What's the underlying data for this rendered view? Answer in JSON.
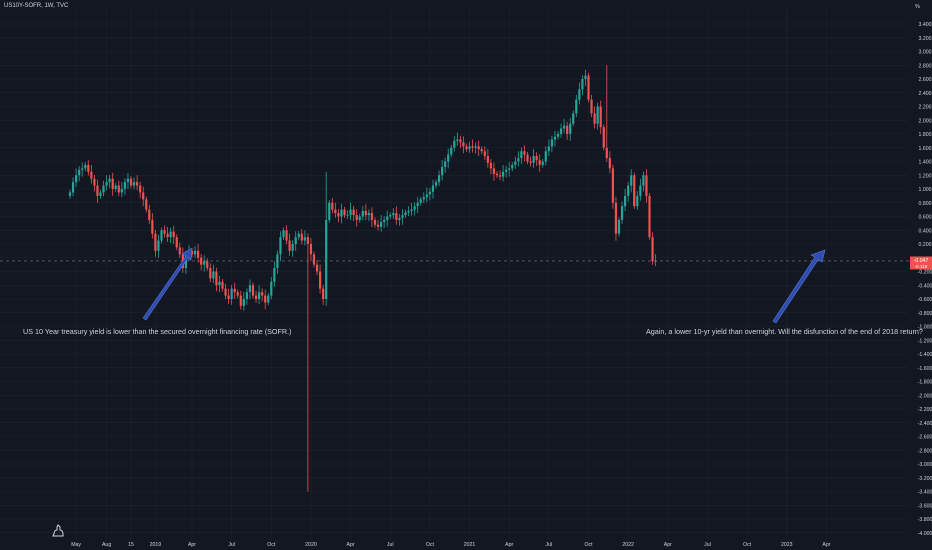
{
  "header": {
    "symbol": "US10Y-SOFR, 1W, TVC"
  },
  "annotations": [
    "US 10 Year treasury yield is lower than the secured overnight financing rate (SOFR.)",
    "Again, a lower 10-yr yield than overnight.  Will the disfunction of the end of 2018 return?"
  ],
  "price_axis": {
    "unit_label": "%"
  },
  "colors": {
    "background": "#131722",
    "up": "#26a69a",
    "down": "#ef5350",
    "grid": "#1f2433",
    "text": "#d1d4dc",
    "arrow": "#2f4db3",
    "zero_line": "#787b86"
  },
  "chart_data": {
    "type": "candlestick",
    "ylim": [
      -4.0,
      3.6
    ],
    "yticks": [
      3.4,
      3.2,
      3.0,
      2.8,
      2.6,
      2.4,
      2.2,
      2.0,
      1.8,
      1.6,
      1.4,
      1.2,
      1.0,
      0.8,
      0.6,
      0.4,
      0.2,
      0.0,
      -0.2,
      -0.4,
      -0.6,
      -0.8,
      -1.0,
      -1.2,
      -1.4,
      -1.6,
      -1.8,
      -2.0,
      -2.2,
      -2.4,
      -2.6,
      -2.8,
      -3.0,
      -3.2,
      -3.4,
      -3.6,
      -3.8,
      -4.0
    ],
    "ytick_labels": [
      "3.400",
      "3.200",
      "3.000",
      "2.800",
      "2.600",
      "2.400",
      "2.200",
      "2.000",
      "1.800",
      "1.600",
      "1.400",
      "1.200",
      "1.000",
      "0.800",
      "0.600",
      "0.400",
      "0.200",
      "",
      "-0.200",
      "-0.400",
      "-0.600",
      "-0.800",
      "-1.000",
      "-1.200",
      "-1.400",
      "-1.600",
      "-1.800",
      "-2.000",
      "-2.200",
      "-2.400",
      "-2.600",
      "-2.800",
      "-3.000",
      "-3.200",
      "-3.400",
      "-3.600",
      "-3.800",
      "-4.000"
    ],
    "xticks": [
      "May",
      "Aug",
      "15",
      "2019",
      "Apr",
      "Jul",
      "Oct",
      "2020",
      "Apr",
      "Jul",
      "Oct",
      "2021",
      "Apr",
      "Jul",
      "Oct",
      "2022",
      "Apr",
      "Jul",
      "Oct",
      "2023",
      "Apr"
    ],
    "xtick_index": [
      2,
      12,
      20,
      28,
      40,
      53,
      66,
      79,
      92,
      105,
      118,
      131,
      144,
      157,
      170,
      183,
      196,
      209,
      222,
      235,
      248
    ],
    "last_value": -0.047,
    "last_value_label": "-0.047",
    "last_value_sublabel": "-0.119",
    "closes": [
      0.95,
      1.1,
      1.2,
      1.28,
      1.3,
      1.35,
      1.25,
      1.15,
      1.05,
      0.9,
      0.95,
      1.05,
      1.1,
      1.15,
      1.0,
      1.05,
      0.95,
      1.0,
      1.1,
      1.15,
      1.05,
      1.1,
      1.05,
      0.95,
      0.85,
      0.7,
      0.55,
      0.35,
      0.1,
      0.25,
      0.4,
      0.35,
      0.3,
      0.38,
      0.3,
      0.15,
      0.05,
      -0.15,
      0.05,
      0.1,
      0.05,
      0.1,
      0.0,
      -0.1,
      -0.05,
      -0.15,
      -0.3,
      -0.2,
      -0.4,
      -0.35,
      -0.45,
      -0.55,
      -0.6,
      -0.45,
      -0.5,
      -0.55,
      -0.7,
      -0.6,
      -0.5,
      -0.4,
      -0.55,
      -0.6,
      -0.5,
      -0.55,
      -0.65,
      -0.55,
      -0.35,
      -0.15,
      0.05,
      0.3,
      0.4,
      0.25,
      0.1,
      0.2,
      0.3,
      0.35,
      0.25,
      0.3,
      0.2,
      0.05,
      -0.1,
      -0.2,
      -0.45,
      -0.6,
      0.55,
      0.8,
      0.7,
      0.65,
      0.6,
      0.7,
      0.62,
      0.62,
      0.7,
      0.62,
      0.55,
      0.6,
      0.68,
      0.62,
      0.65,
      0.55,
      0.48,
      0.45,
      0.52,
      0.55,
      0.6,
      0.62,
      0.65,
      0.55,
      0.58,
      0.62,
      0.66,
      0.68,
      0.7,
      0.75,
      0.8,
      0.85,
      0.88,
      0.92,
      0.96,
      1.05,
      1.1,
      1.2,
      1.32,
      1.4,
      1.5,
      1.6,
      1.7,
      1.72,
      1.68,
      1.62,
      1.58,
      1.62,
      1.6,
      1.62,
      1.58,
      1.55,
      1.48,
      1.38,
      1.3,
      1.22,
      1.2,
      1.18,
      1.25,
      1.28,
      1.3,
      1.35,
      1.4,
      1.45,
      1.55,
      1.5,
      1.4,
      1.38,
      1.48,
      1.42,
      1.35,
      1.4,
      1.55,
      1.62,
      1.72,
      1.76,
      1.8,
      1.88,
      1.92,
      1.8,
      1.95,
      2.1,
      2.3,
      2.45,
      2.6,
      2.65,
      2.3,
      2.1,
      1.95,
      2.2,
      1.9,
      1.6,
      1.45,
      1.3,
      0.8,
      0.35,
      0.55,
      0.75,
      0.9,
      1.05,
      1.2,
      0.75,
      0.9,
      1.05,
      1.2,
      0.9,
      0.3,
      -0.05,
      -0.047
    ]
  }
}
